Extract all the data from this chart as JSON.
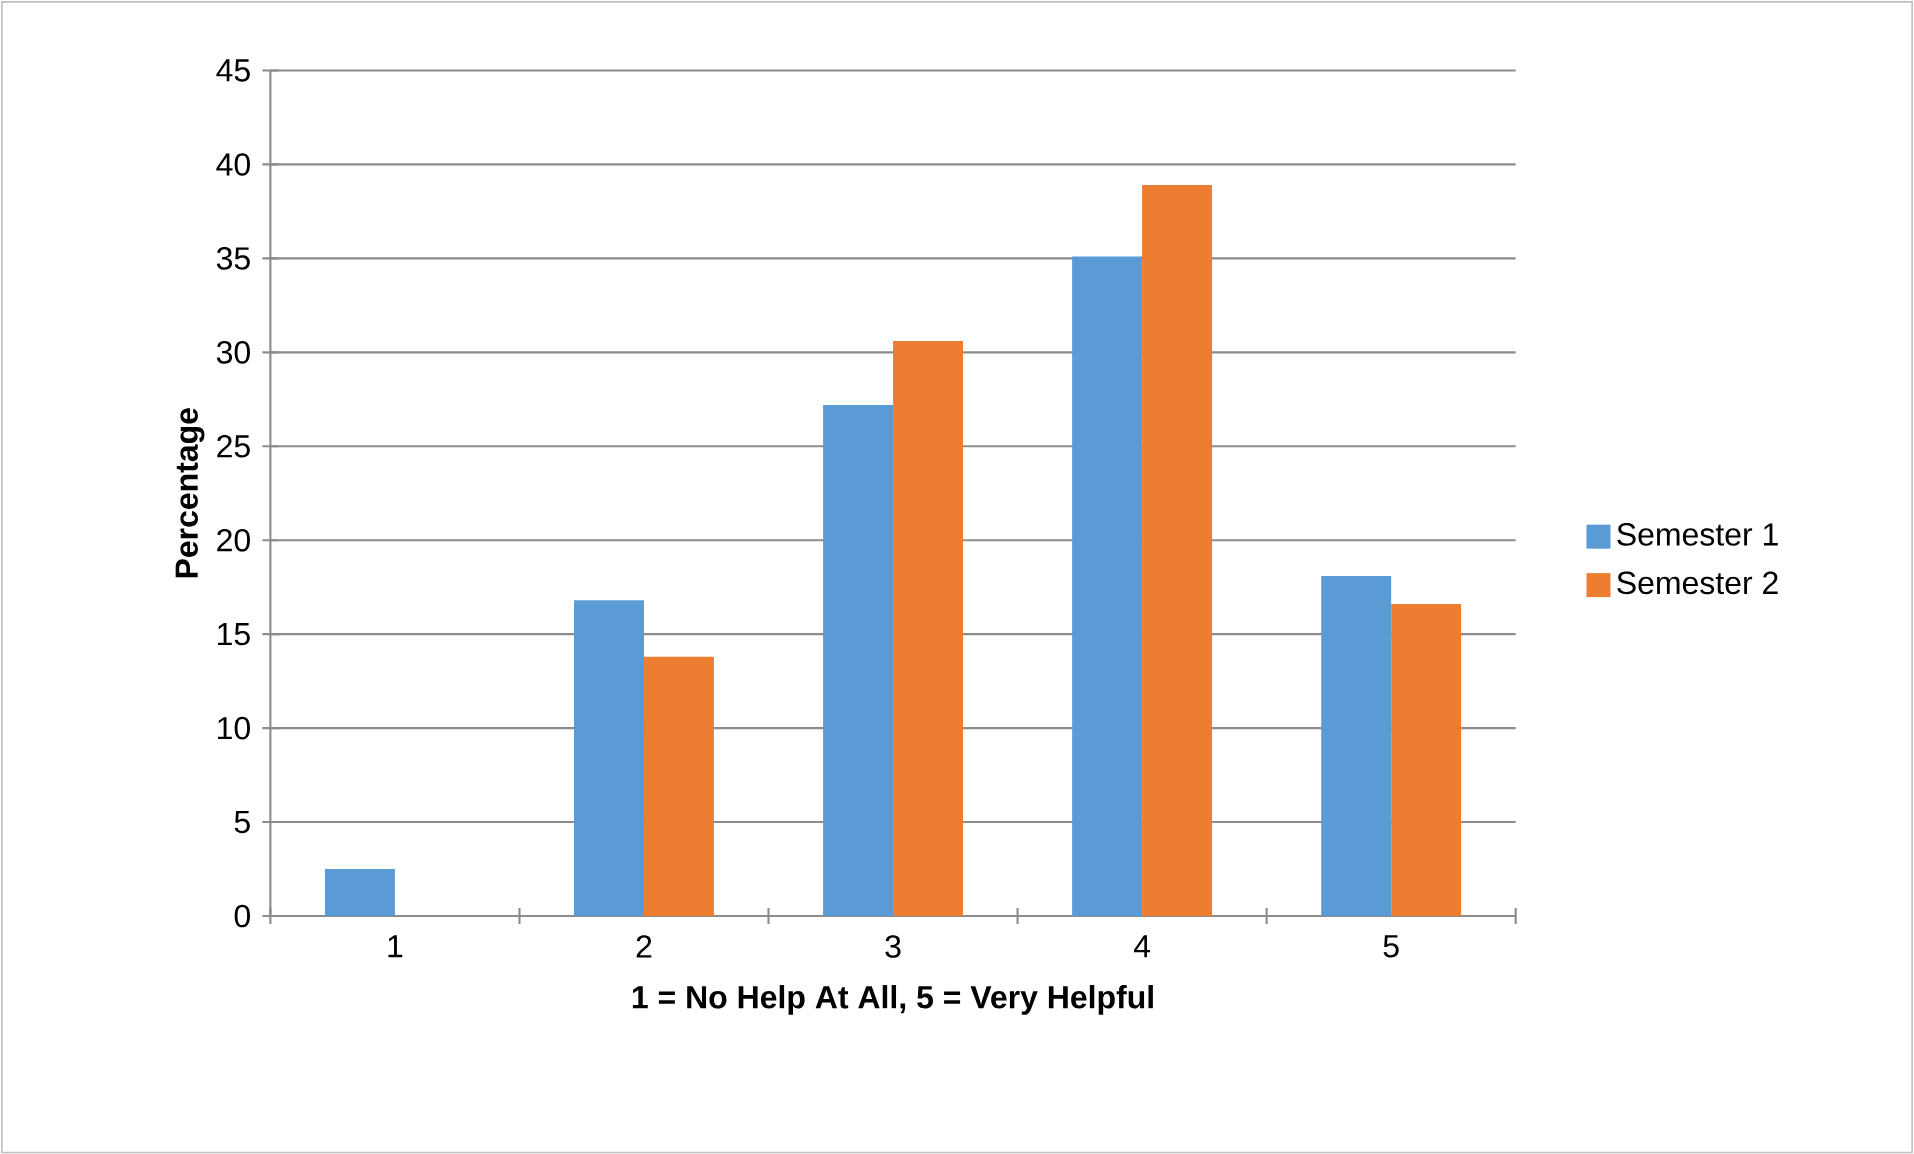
{
  "chart_data": {
    "type": "bar",
    "xlabel": "1 = No Help At All, 5 = Very Helpful",
    "ylabel": "Percentage",
    "categories": [
      "1",
      "2",
      "3",
      "4",
      "5"
    ],
    "series": [
      {
        "name": "Semester 1",
        "color": "#5b9bd5",
        "values": [
          2.5,
          16.8,
          27.2,
          35.1,
          18.1
        ]
      },
      {
        "name": "Semester 2",
        "color": "#ed7d31",
        "values": [
          0,
          13.8,
          30.6,
          38.9,
          16.6
        ]
      }
    ],
    "ylim": [
      0,
      45
    ],
    "yticks": [
      0,
      5,
      10,
      15,
      20,
      25,
      30,
      35,
      40,
      45
    ],
    "grid": "y",
    "legend": "right"
  }
}
